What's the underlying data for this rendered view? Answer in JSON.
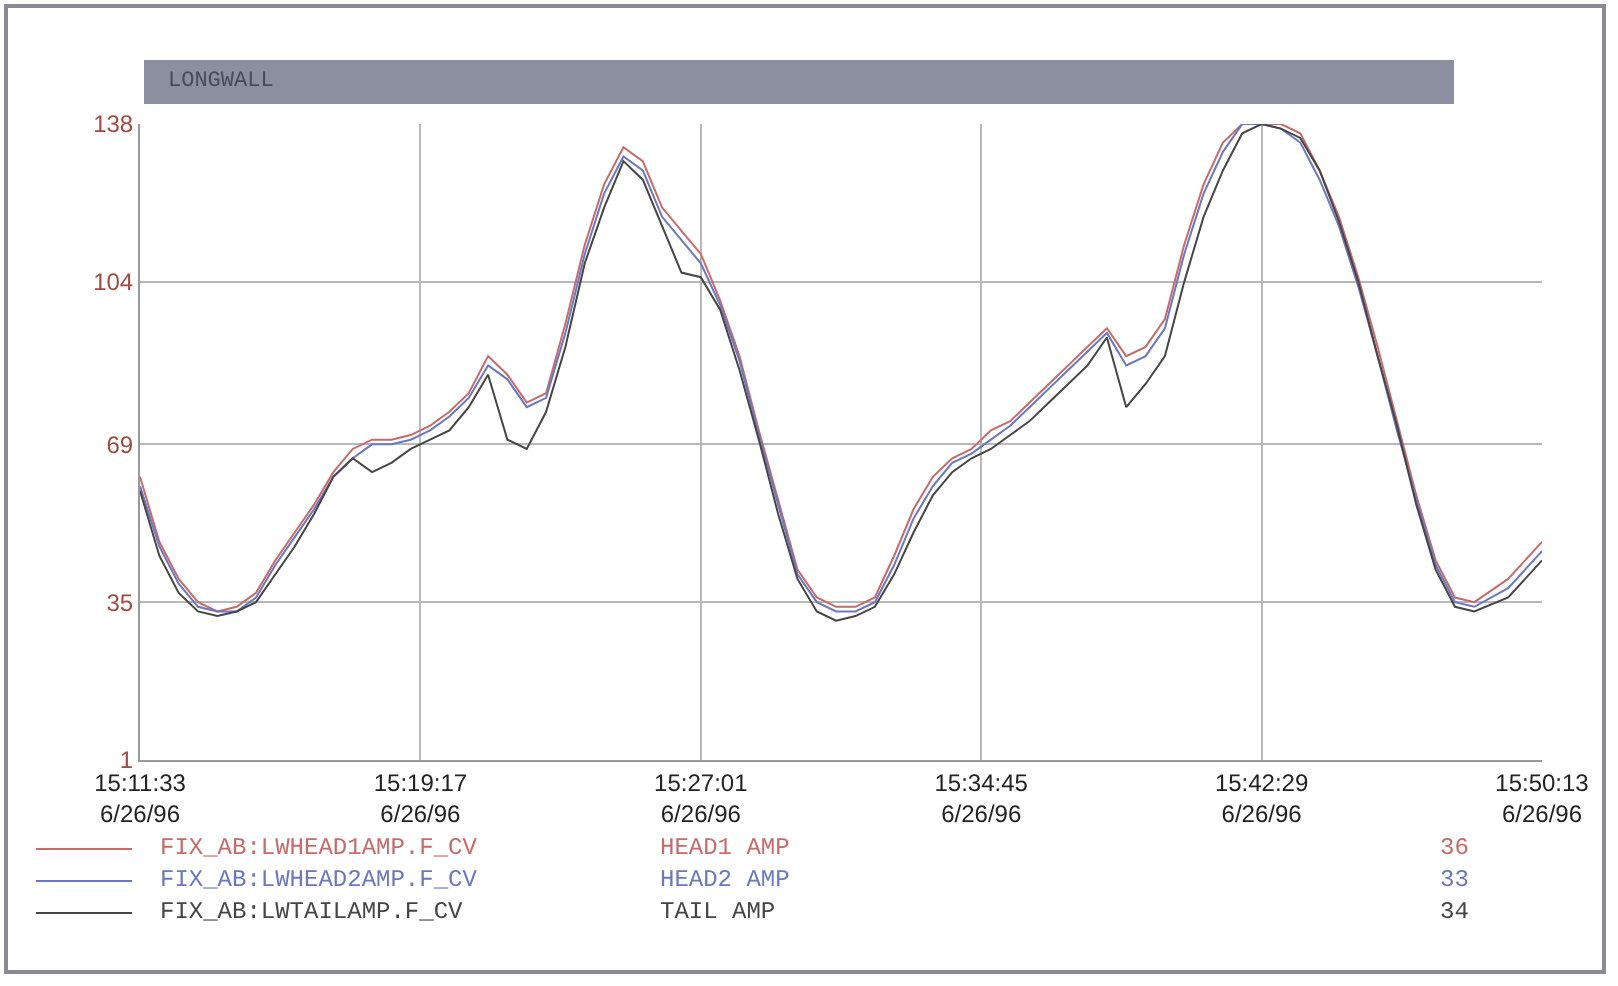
{
  "chart_data": {
    "type": "line",
    "title": "LONGWALL",
    "x": [
      "1996-06-26T15:11:33",
      "1996-06-26T15:12:05",
      "1996-06-26T15:12:37",
      "1996-06-26T15:13:09",
      "1996-06-26T15:13:41",
      "1996-06-26T15:14:13",
      "1996-06-26T15:14:45",
      "1996-06-26T15:15:17",
      "1996-06-26T15:15:49",
      "1996-06-26T15:16:21",
      "1996-06-26T15:16:53",
      "1996-06-26T15:17:25",
      "1996-06-26T15:17:57",
      "1996-06-26T15:18:29",
      "1996-06-26T15:19:01",
      "1996-06-26T15:19:33",
      "1996-06-26T15:20:05",
      "1996-06-26T15:20:37",
      "1996-06-26T15:21:09",
      "1996-06-26T15:21:41",
      "1996-06-26T15:22:13",
      "1996-06-26T15:22:45",
      "1996-06-26T15:23:17",
      "1996-06-26T15:23:49",
      "1996-06-26T15:24:21",
      "1996-06-26T15:24:53",
      "1996-06-26T15:25:25",
      "1996-06-26T15:25:57",
      "1996-06-26T15:26:29",
      "1996-06-26T15:27:01",
      "1996-06-26T15:27:33",
      "1996-06-26T15:28:05",
      "1996-06-26T15:28:37",
      "1996-06-26T15:29:09",
      "1996-06-26T15:29:41",
      "1996-06-26T15:30:13",
      "1996-06-26T15:30:45",
      "1996-06-26T15:31:17",
      "1996-06-26T15:31:49",
      "1996-06-26T15:32:21",
      "1996-06-26T15:32:53",
      "1996-06-26T15:33:25",
      "1996-06-26T15:33:57",
      "1996-06-26T15:34:29",
      "1996-06-26T15:35:01",
      "1996-06-26T15:35:33",
      "1996-06-26T15:36:05",
      "1996-06-26T15:36:37",
      "1996-06-26T15:37:09",
      "1996-06-26T15:37:41",
      "1996-06-26T15:38:13",
      "1996-06-26T15:38:45",
      "1996-06-26T15:39:17",
      "1996-06-26T15:39:49",
      "1996-06-26T15:40:21",
      "1996-06-26T15:40:53",
      "1996-06-26T15:41:25",
      "1996-06-26T15:41:57",
      "1996-06-26T15:42:29",
      "1996-06-26T15:43:01",
      "1996-06-26T15:43:33",
      "1996-06-26T15:44:05",
      "1996-06-26T15:44:37",
      "1996-06-26T15:45:09",
      "1996-06-26T15:45:41",
      "1996-06-26T15:46:13",
      "1996-06-26T15:46:45",
      "1996-06-26T15:47:17",
      "1996-06-26T15:47:49",
      "1996-06-26T15:48:21",
      "1996-06-26T15:49:17",
      "1996-06-26T15:50:13"
    ],
    "series": [
      {
        "name": "FIX_AB:LWHEAD1AMP.F_CV",
        "color": "#c86a6a",
        "values": [
          62,
          48,
          40,
          35,
          33,
          34,
          37,
          44,
          50,
          56,
          63,
          68,
          70,
          70,
          71,
          73,
          76,
          80,
          88,
          84,
          78,
          80,
          95,
          112,
          125,
          133,
          130,
          120,
          115,
          110,
          100,
          88,
          72,
          57,
          42,
          36,
          34,
          34,
          36,
          45,
          55,
          62,
          66,
          68,
          72,
          74,
          78,
          82,
          86,
          90,
          94,
          88,
          90,
          96,
          112,
          125,
          134,
          138,
          138,
          138,
          136,
          128,
          118,
          105,
          90,
          74,
          58,
          44,
          36,
          35,
          40,
          48
        ]
      },
      {
        "name": "FIX_AB:LWHEAD2AMP.F_CV",
        "color": "#6a78c0",
        "values": [
          60,
          47,
          39,
          34,
          33,
          33,
          36,
          43,
          49,
          55,
          62,
          66,
          69,
          69,
          70,
          72,
          75,
          79,
          86,
          83,
          77,
          79,
          93,
          110,
          123,
          131,
          128,
          118,
          113,
          108,
          99,
          87,
          71,
          56,
          41,
          35,
          33,
          33,
          35,
          43,
          53,
          60,
          65,
          67,
          70,
          73,
          77,
          81,
          85,
          89,
          93,
          86,
          88,
          94,
          110,
          123,
          132,
          138,
          138,
          137,
          134,
          126,
          116,
          103,
          88,
          72,
          57,
          43,
          35,
          34,
          38,
          46
        ]
      },
      {
        "name": "FIX_AB:LWTAILAMP.F_CV",
        "color": "#454545",
        "values": [
          59,
          45,
          37,
          33,
          32,
          33,
          35,
          41,
          47,
          54,
          62,
          66,
          63,
          65,
          68,
          70,
          72,
          77,
          84,
          70,
          68,
          76,
          90,
          108,
          120,
          130,
          126,
          116,
          106,
          105,
          98,
          85,
          70,
          54,
          40,
          33,
          31,
          32,
          34,
          41,
          50,
          58,
          63,
          66,
          68,
          71,
          74,
          78,
          82,
          86,
          92,
          77,
          82,
          88,
          104,
          118,
          128,
          136,
          138,
          137,
          135,
          128,
          117,
          104,
          88,
          73,
          56,
          42,
          34,
          33,
          36,
          44
        ]
      }
    ],
    "annotations": [
      "HEAD1 AMP",
      "HEAD2 AMP",
      "TAIL AMP",
      "36",
      "33",
      "34"
    ],
    "xlim": [
      "1996-06-26T15:11:33",
      "1996-06-26T15:50:13"
    ],
    "xticks": [
      {
        "value": "1996-06-26T15:11:33",
        "label": "15:11:33\n6/26/96"
      },
      {
        "value": "1996-06-26T15:19:17",
        "label": "15:19:17\n6/26/96"
      },
      {
        "value": "1996-06-26T15:27:01",
        "label": "15:27:01\n6/26/96"
      },
      {
        "value": "1996-06-26T15:34:45",
        "label": "15:34:45\n6/26/96"
      },
      {
        "value": "1996-06-26T15:42:29",
        "label": "15:42:29\n6/26/96"
      },
      {
        "value": "1996-06-26T15:50:13",
        "label": "15:50:13\n6/26/96"
      }
    ],
    "ylim": [
      1,
      138
    ],
    "yticks": [
      1,
      35,
      69,
      104,
      138
    ],
    "grid": true,
    "legend": "bottom left",
    "marker": "none",
    "line_style": "solid"
  }
}
